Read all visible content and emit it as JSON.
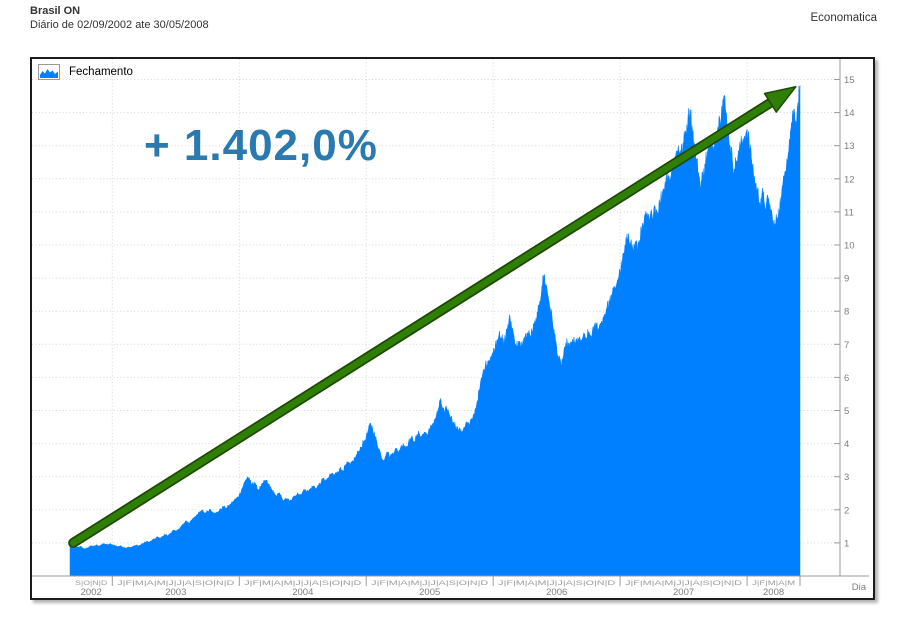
{
  "header": {
    "title": "Brasil ON",
    "subtitle": "Diário de 02/09/2002 ate 30/05/2008",
    "brand": "Economatica"
  },
  "colors": {
    "area": "#0080ff",
    "arrow": "#2f7e06",
    "arrow_outline": "#1d4a03",
    "annotation": "#2a7ab0",
    "grid": "#d6d6d6",
    "axis": "#9b9b9b",
    "tick_text": "#7d7d7d",
    "month_text": "#9b9b9b",
    "text": "#333333"
  },
  "chart_data": {
    "type": "area",
    "series_name": "Fechamento",
    "annotation": "+ 1.402,0%",
    "x_label": "Dia",
    "x_unit": "months, t=0 is Sep/2002 and t=69 is end of May/2008",
    "x_range": [
      0,
      69
    ],
    "y_range": [
      0,
      15.4
    ],
    "y_ticks": [
      1,
      2,
      3,
      4,
      5,
      6,
      7,
      8,
      9,
      10,
      11,
      12,
      13,
      14,
      15
    ],
    "grid": true,
    "legend_position": "top-left",
    "years": [
      {
        "label": "2002",
        "start": 0,
        "end": 4,
        "months": "S|O|N|D"
      },
      {
        "label": "2003",
        "start": 4,
        "end": 16,
        "months": "J|F|M|A|M|J|J|A|S|O|N|D"
      },
      {
        "label": "2004",
        "start": 16,
        "end": 28,
        "months": "J|F|M|A|M|J|J|A|S|O|N|D"
      },
      {
        "label": "2005",
        "start": 28,
        "end": 40,
        "months": "J|F|M|A|M|J|J|A|S|O|N|D"
      },
      {
        "label": "2006",
        "start": 40,
        "end": 52,
        "months": "J|F|M|A|M|J|J|A|S|O|N|D"
      },
      {
        "label": "2007",
        "start": 52,
        "end": 64,
        "months": "J|F|M|A|M|J|J|A|S|O|N|D"
      },
      {
        "label": "2008",
        "start": 64,
        "end": 69,
        "months": "J|F|M|A|M"
      }
    ],
    "arrow": {
      "from": [
        0.3,
        1.0
      ],
      "to": [
        68.6,
        14.78
      ]
    },
    "noise_amplitude": 0.022,
    "seed": 12345,
    "points": [
      [
        0,
        1.02
      ],
      [
        0.25,
        0.97
      ],
      [
        0.5,
        0.92
      ],
      [
        0.75,
        0.86
      ],
      [
        1,
        0.9
      ],
      [
        1.25,
        0.84
      ],
      [
        1.5,
        0.82
      ],
      [
        1.75,
        0.87
      ],
      [
        2,
        0.92
      ],
      [
        2.25,
        0.89
      ],
      [
        2.5,
        0.94
      ],
      [
        2.75,
        0.91
      ],
      [
        3,
        0.95
      ],
      [
        3.25,
        0.98
      ],
      [
        3.5,
        0.94
      ],
      [
        3.75,
        0.97
      ],
      [
        4,
        0.95
      ],
      [
        4.25,
        0.92
      ],
      [
        4.5,
        0.89
      ],
      [
        4.75,
        0.91
      ],
      [
        5,
        0.88
      ],
      [
        5.25,
        0.85
      ],
      [
        5.5,
        0.88
      ],
      [
        5.75,
        0.86
      ],
      [
        6,
        0.9
      ],
      [
        6.25,
        0.94
      ],
      [
        6.5,
        0.91
      ],
      [
        6.75,
        0.96
      ],
      [
        7,
        1.0
      ],
      [
        7.25,
        1.05
      ],
      [
        7.5,
        1.02
      ],
      [
        7.75,
        1.08
      ],
      [
        8,
        1.12
      ],
      [
        8.25,
        1.18
      ],
      [
        8.5,
        1.14
      ],
      [
        8.75,
        1.2
      ],
      [
        9,
        1.26
      ],
      [
        9.25,
        1.21
      ],
      [
        9.5,
        1.3
      ],
      [
        9.75,
        1.38
      ],
      [
        10,
        1.34
      ],
      [
        10.25,
        1.42
      ],
      [
        10.5,
        1.5
      ],
      [
        10.75,
        1.58
      ],
      [
        11,
        1.66
      ],
      [
        11.25,
        1.6
      ],
      [
        11.5,
        1.7
      ],
      [
        11.75,
        1.78
      ],
      [
        12,
        1.86
      ],
      [
        12.25,
        1.92
      ],
      [
        12.5,
        1.98
      ],
      [
        12.75,
        1.9
      ],
      [
        13,
        1.96
      ],
      [
        13.25,
        2.02
      ],
      [
        13.5,
        1.94
      ],
      [
        13.75,
        1.88
      ],
      [
        14,
        1.95
      ],
      [
        14.25,
        2.02
      ],
      [
        14.5,
        2.1
      ],
      [
        14.75,
        2.05
      ],
      [
        15,
        2.12
      ],
      [
        15.25,
        2.2
      ],
      [
        15.5,
        2.28
      ],
      [
        15.75,
        2.35
      ],
      [
        16,
        2.45
      ],
      [
        16.2,
        2.6
      ],
      [
        16.4,
        2.75
      ],
      [
        16.6,
        2.9
      ],
      [
        16.8,
        3.0
      ],
      [
        17,
        2.88
      ],
      [
        17.2,
        2.75
      ],
      [
        17.4,
        2.85
      ],
      [
        17.6,
        2.72
      ],
      [
        17.8,
        2.6
      ],
      [
        18,
        2.7
      ],
      [
        18.25,
        2.8
      ],
      [
        18.5,
        2.9
      ],
      [
        18.75,
        2.78
      ],
      [
        19,
        2.65
      ],
      [
        19.25,
        2.52
      ],
      [
        19.5,
        2.42
      ],
      [
        19.75,
        2.5
      ],
      [
        20,
        2.38
      ],
      [
        20.25,
        2.28
      ],
      [
        20.5,
        2.35
      ],
      [
        20.75,
        2.25
      ],
      [
        21,
        2.32
      ],
      [
        21.25,
        2.42
      ],
      [
        21.5,
        2.52
      ],
      [
        21.75,
        2.45
      ],
      [
        22,
        2.55
      ],
      [
        22.25,
        2.62
      ],
      [
        22.5,
        2.55
      ],
      [
        22.75,
        2.65
      ],
      [
        23,
        2.72
      ],
      [
        23.25,
        2.65
      ],
      [
        23.5,
        2.75
      ],
      [
        23.75,
        2.85
      ],
      [
        24,
        2.95
      ],
      [
        24.25,
        2.88
      ],
      [
        24.5,
        3.0
      ],
      [
        24.75,
        3.1
      ],
      [
        25,
        3.05
      ],
      [
        25.25,
        3.15
      ],
      [
        25.5,
        3.25
      ],
      [
        25.75,
        3.2
      ],
      [
        26,
        3.3
      ],
      [
        26.25,
        3.42
      ],
      [
        26.5,
        3.35
      ],
      [
        26.75,
        3.48
      ],
      [
        27,
        3.6
      ],
      [
        27.25,
        3.75
      ],
      [
        27.5,
        3.9
      ],
      [
        27.75,
        4.05
      ],
      [
        28,
        4.2
      ],
      [
        28.2,
        4.4
      ],
      [
        28.4,
        4.62
      ],
      [
        28.6,
        4.45
      ],
      [
        28.8,
        4.25
      ],
      [
        29,
        4.05
      ],
      [
        29.2,
        3.85
      ],
      [
        29.4,
        3.65
      ],
      [
        29.6,
        3.5
      ],
      [
        29.8,
        3.62
      ],
      [
        30,
        3.75
      ],
      [
        30.25,
        3.6
      ],
      [
        30.5,
        3.72
      ],
      [
        30.75,
        3.85
      ],
      [
        31,
        3.75
      ],
      [
        31.25,
        3.88
      ],
      [
        31.5,
        4.0
      ],
      [
        31.75,
        3.9
      ],
      [
        32,
        4.05
      ],
      [
        32.25,
        4.18
      ],
      [
        32.5,
        4.08
      ],
      [
        32.75,
        4.2
      ],
      [
        33,
        4.32
      ],
      [
        33.25,
        4.22
      ],
      [
        33.5,
        4.35
      ],
      [
        33.75,
        4.28
      ],
      [
        34,
        4.42
      ],
      [
        34.25,
        4.58
      ],
      [
        34.5,
        4.75
      ],
      [
        34.75,
        4.95
      ],
      [
        35,
        5.32
      ],
      [
        35.2,
        5.1
      ],
      [
        35.4,
        4.92
      ],
      [
        35.6,
        5.08
      ],
      [
        35.8,
        4.95
      ],
      [
        36,
        4.8
      ],
      [
        36.25,
        4.65
      ],
      [
        36.5,
        4.52
      ],
      [
        36.75,
        4.42
      ],
      [
        37,
        4.35
      ],
      [
        37.25,
        4.5
      ],
      [
        37.5,
        4.65
      ],
      [
        37.75,
        4.55
      ],
      [
        38,
        4.75
      ],
      [
        38.25,
        4.95
      ],
      [
        38.5,
        5.3
      ],
      [
        38.75,
        5.7
      ],
      [
        39,
        6.1
      ],
      [
        39.25,
        6.35
      ],
      [
        39.5,
        6.5
      ],
      [
        39.75,
        6.62
      ],
      [
        40,
        6.75
      ],
      [
        40.2,
        6.95
      ],
      [
        40.4,
        7.15
      ],
      [
        40.6,
        7.4
      ],
      [
        40.8,
        7.2
      ],
      [
        41,
        7.0
      ],
      [
        41.2,
        7.3
      ],
      [
        41.4,
        7.6
      ],
      [
        41.6,
        7.8
      ],
      [
        41.8,
        7.5
      ],
      [
        42,
        7.2
      ],
      [
        42.2,
        6.95
      ],
      [
        42.4,
        7.1
      ],
      [
        42.6,
        6.9
      ],
      [
        42.8,
        7.05
      ],
      [
        43,
        7.2
      ],
      [
        43.25,
        7.35
      ],
      [
        43.5,
        7.25
      ],
      [
        43.75,
        7.45
      ],
      [
        44,
        7.65
      ],
      [
        44.2,
        7.9
      ],
      [
        44.4,
        8.3
      ],
      [
        44.6,
        8.75
      ],
      [
        44.8,
        9.1
      ],
      [
        45,
        8.8
      ],
      [
        45.2,
        8.45
      ],
      [
        45.4,
        8.1
      ],
      [
        45.6,
        7.7
      ],
      [
        45.8,
        7.3
      ],
      [
        46,
        6.9
      ],
      [
        46.2,
        6.55
      ],
      [
        46.4,
        6.4
      ],
      [
        46.6,
        6.6
      ],
      [
        46.8,
        6.85
      ],
      [
        47,
        7.1
      ],
      [
        47.25,
        6.9
      ],
      [
        47.5,
        7.15
      ],
      [
        47.75,
        7.0
      ],
      [
        48,
        7.2
      ],
      [
        48.25,
        7.05
      ],
      [
        48.5,
        7.25
      ],
      [
        48.75,
        7.15
      ],
      [
        49,
        7.35
      ],
      [
        49.25,
        7.25
      ],
      [
        49.5,
        7.45
      ],
      [
        49.75,
        7.6
      ],
      [
        50,
        7.5
      ],
      [
        50.25,
        7.7
      ],
      [
        50.5,
        7.9
      ],
      [
        50.75,
        8.1
      ],
      [
        51,
        8.3
      ],
      [
        51.25,
        8.5
      ],
      [
        51.5,
        8.7
      ],
      [
        51.75,
        8.95
      ],
      [
        52,
        9.2
      ],
      [
        52.2,
        9.5
      ],
      [
        52.4,
        9.8
      ],
      [
        52.6,
        10.1
      ],
      [
        52.8,
        10.35
      ],
      [
        53,
        10.1
      ],
      [
        53.2,
        9.85
      ],
      [
        53.4,
        10.05
      ],
      [
        53.6,
        9.9
      ],
      [
        53.8,
        10.15
      ],
      [
        54,
        10.4
      ],
      [
        54.25,
        10.65
      ],
      [
        54.5,
        10.9
      ],
      [
        54.75,
        10.7
      ],
      [
        55,
        10.95
      ],
      [
        55.25,
        11.2
      ],
      [
        55.5,
        11.0
      ],
      [
        55.75,
        11.3
      ],
      [
        56,
        11.6
      ],
      [
        56.25,
        11.9
      ],
      [
        56.5,
        12.2
      ],
      [
        56.75,
        12.0
      ],
      [
        57,
        12.35
      ],
      [
        57.25,
        12.7
      ],
      [
        57.5,
        13.0
      ],
      [
        57.75,
        12.75
      ],
      [
        58,
        13.1
      ],
      [
        58.2,
        13.45
      ],
      [
        58.4,
        13.8
      ],
      [
        58.6,
        14.1
      ],
      [
        58.8,
        13.6
      ],
      [
        59,
        13.1
      ],
      [
        59.2,
        12.6
      ],
      [
        59.4,
        12.2
      ],
      [
        59.6,
        11.8
      ],
      [
        59.8,
        12.1
      ],
      [
        60,
        12.45
      ],
      [
        60.25,
        12.8
      ],
      [
        60.5,
        13.1
      ],
      [
        60.75,
        12.9
      ],
      [
        61,
        13.2
      ],
      [
        61.2,
        13.5
      ],
      [
        61.4,
        13.85
      ],
      [
        61.6,
        14.2
      ],
      [
        61.8,
        14.5
      ],
      [
        62,
        14.0
      ],
      [
        62.2,
        13.5
      ],
      [
        62.4,
        13.0
      ],
      [
        62.6,
        12.6
      ],
      [
        62.8,
        12.3
      ],
      [
        63,
        12.55
      ],
      [
        63.25,
        12.85
      ],
      [
        63.5,
        13.1
      ],
      [
        63.75,
        13.3
      ],
      [
        64,
        13.5
      ],
      [
        64.2,
        13.1
      ],
      [
        64.4,
        12.65
      ],
      [
        64.6,
        12.2
      ],
      [
        64.8,
        11.85
      ],
      [
        65,
        11.6
      ],
      [
        65.2,
        11.3
      ],
      [
        65.4,
        11.55
      ],
      [
        65.6,
        11.35
      ],
      [
        65.8,
        11.15
      ],
      [
        66,
        11.4
      ],
      [
        66.2,
        11.1
      ],
      [
        66.4,
        10.8
      ],
      [
        66.6,
        10.55
      ],
      [
        66.8,
        10.8
      ],
      [
        67,
        11.1
      ],
      [
        67.25,
        11.5
      ],
      [
        67.5,
        12.0
      ],
      [
        67.75,
        12.6
      ],
      [
        68,
        13.2
      ],
      [
        68.2,
        13.7
      ],
      [
        68.4,
        14.1
      ],
      [
        68.6,
        13.75
      ],
      [
        68.8,
        14.3
      ],
      [
        69,
        14.82
      ]
    ]
  }
}
